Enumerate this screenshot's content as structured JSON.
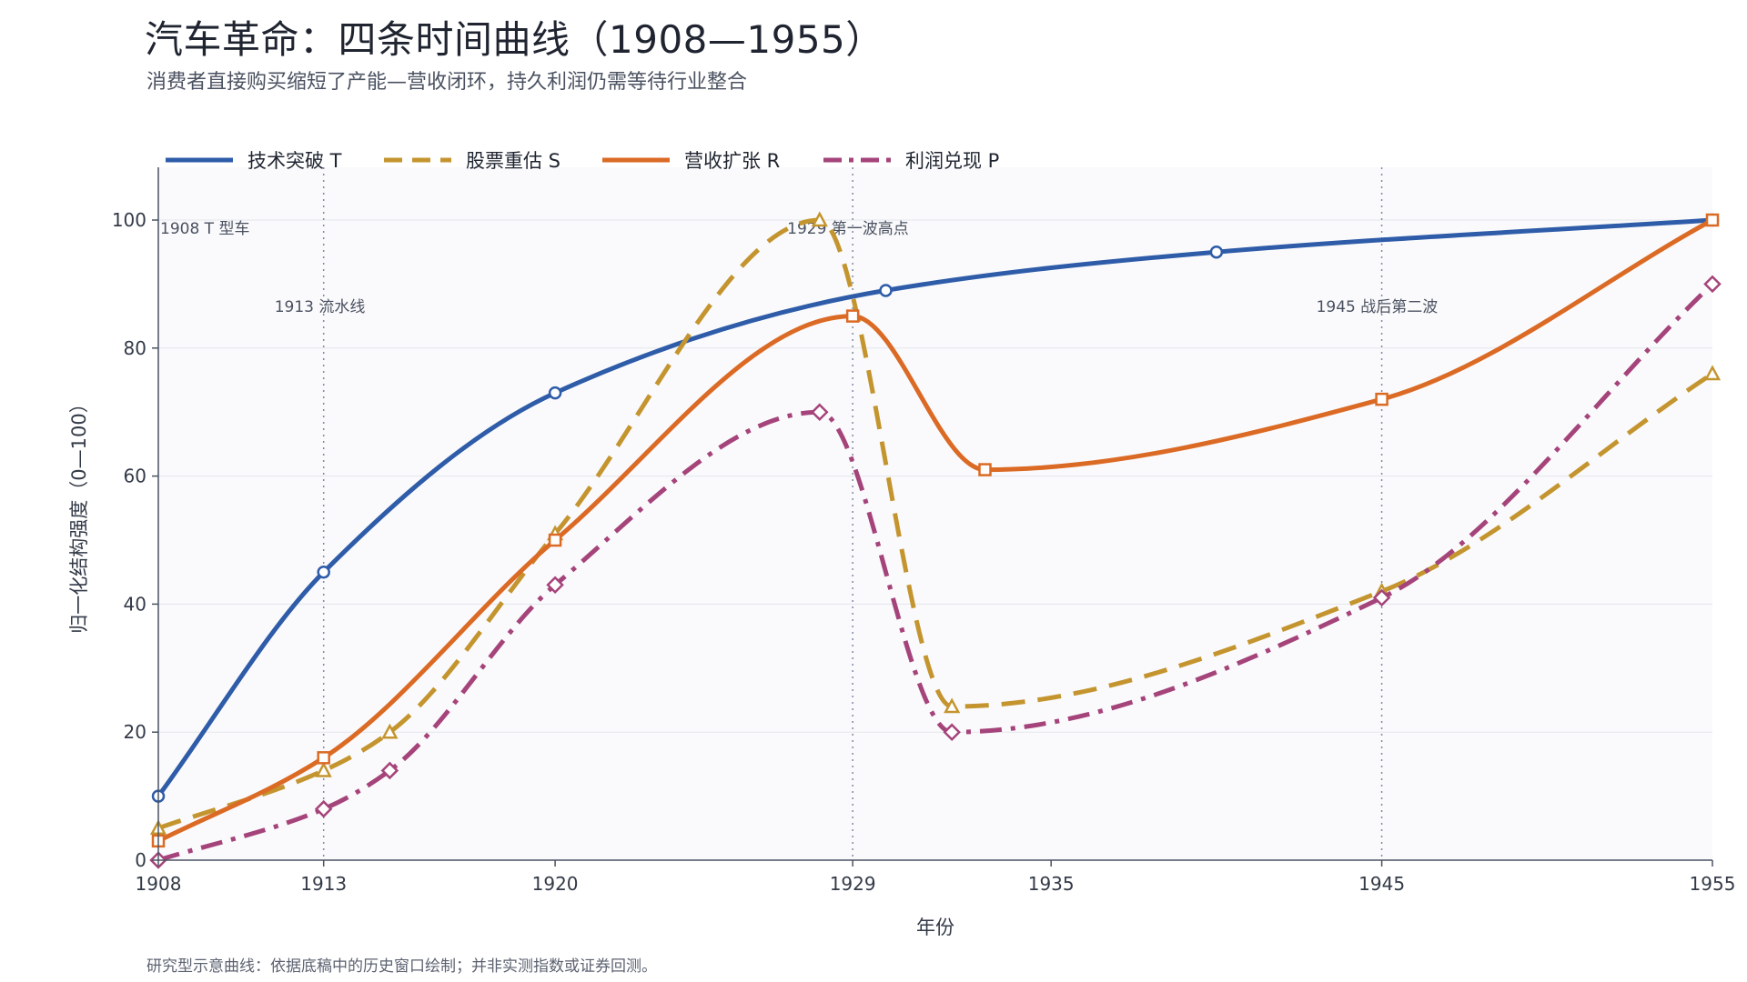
{
  "title": "汽车革命：四条时间曲线（1908—1955）",
  "subtitle": "消费者直接购买缩短了产能—营收闭环，持久利润仍需等待行业整合",
  "footnote": "研究型示意曲线：依据底稿中的历史窗口绘制；并非实测指数或证券回测。",
  "chart_data": {
    "type": "line",
    "title": "汽车革命：四条时间曲线（1908—1955）",
    "xlabel": "年份",
    "ylabel": "归一化结构强度（0—100）",
    "xlim": [
      1908,
      1955
    ],
    "ylim": [
      0,
      108
    ],
    "x_ticks": [
      1908,
      1913,
      1920,
      1929,
      1935,
      1945,
      1955
    ],
    "y_ticks": [
      0,
      20,
      40,
      60,
      80,
      100
    ],
    "grid": "horizontal",
    "legend_position": "top",
    "series": [
      {
        "name": "技术突破 T",
        "color": "#2e5ca8",
        "dash": "solid",
        "marker": "circle",
        "points": [
          [
            1908,
            10
          ],
          [
            1913,
            45
          ],
          [
            1920,
            73
          ],
          [
            1930,
            89
          ],
          [
            1940,
            95
          ],
          [
            1955,
            100
          ]
        ]
      },
      {
        "name": "股票重估 S",
        "color": "#c4952f",
        "dash": "dashed",
        "marker": "triangle",
        "points": [
          [
            1908,
            5
          ],
          [
            1913,
            14
          ],
          [
            1915,
            20
          ],
          [
            1920,
            51
          ],
          [
            1928,
            100
          ],
          [
            1932,
            24
          ],
          [
            1945,
            42
          ],
          [
            1955,
            76
          ]
        ]
      },
      {
        "name": "营收扩张 R",
        "color": "#db6a25",
        "dash": "solid",
        "marker": "square",
        "points": [
          [
            1908,
            3
          ],
          [
            1913,
            16
          ],
          [
            1920,
            50
          ],
          [
            1929,
            85
          ],
          [
            1933,
            61
          ],
          [
            1945,
            72
          ],
          [
            1955,
            100
          ]
        ]
      },
      {
        "name": "利润兑现 P",
        "color": "#a5447a",
        "dash": "dashdot",
        "marker": "diamond",
        "points": [
          [
            1908,
            0
          ],
          [
            1913,
            8
          ],
          [
            1915,
            14
          ],
          [
            1920,
            43
          ],
          [
            1928,
            70
          ],
          [
            1932,
            20
          ],
          [
            1945,
            41
          ],
          [
            1955,
            90
          ]
        ]
      }
    ],
    "annotations": [
      {
        "x": 1908,
        "text": "1908  T 型车"
      },
      {
        "x": 1913,
        "text": "1913  流水线"
      },
      {
        "x": 1929,
        "text": "1929  第一波高点"
      },
      {
        "x": 1945,
        "text": "1945  战后第二波"
      }
    ]
  }
}
